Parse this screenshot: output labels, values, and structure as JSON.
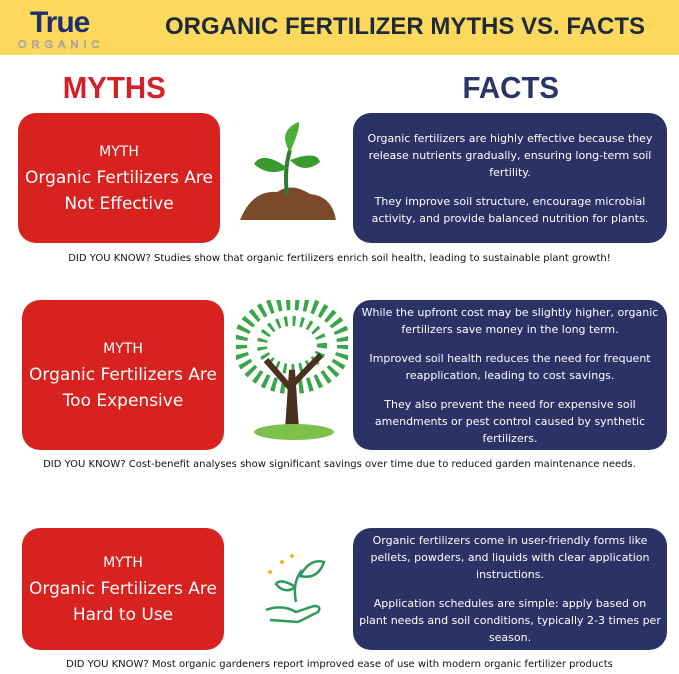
{
  "header": {
    "logo_text": "True",
    "logo_sub": "ORGANIC",
    "title": "ORGANIC FERTILIZER MYTHS VS. FACTS"
  },
  "columns": {
    "myths": "MYTHS",
    "facts": "FACTS"
  },
  "colors": {
    "header_bg": "#fcd95c",
    "myth_red": "#d8221f",
    "fact_navy": "#2b3266"
  },
  "rows": [
    {
      "myth_label": "MYTH",
      "myth_lines": [
        "Organic Fertilizers Are",
        "Not Effective"
      ],
      "icon": "seedling-in-soil-icon",
      "facts": [
        "Organic fertilizers are highly effective because they release nutrients gradually, ensuring long-term soil fertility.",
        "They improve soil structure, encourage microbial activity, and provide balanced nutrition for plants."
      ],
      "did_you_know": "DID YOU KNOW? Studies show that organic fertilizers enrich soil health, leading to sustainable plant growth!"
    },
    {
      "myth_label": "MYTH",
      "myth_lines": [
        "Organic Fertilizers Are",
        "Too Expensive"
      ],
      "icon": "money-tree-icon",
      "facts": [
        "While the upfront cost may be slightly higher, organic fertilizers save money in the long term.",
        "Improved soil health reduces the need for frequent reapplication, leading to cost savings.",
        "They also prevent the need for expensive soil amendments or pest control caused by synthetic fertilizers."
      ],
      "did_you_know": "DID YOU KNOW? Cost-benefit analyses show significant savings over time due to reduced garden maintenance needs."
    },
    {
      "myth_label": "MYTH",
      "myth_lines": [
        "Organic Fertilizers Are",
        "Hard to Use"
      ],
      "icon": "hand-with-plant-icon",
      "facts": [
        "Organic fertilizers come in user-friendly forms like pellets, powders, and liquids with clear application instructions.",
        "Application schedules are simple: apply based on plant needs and soil conditions, typically 2-3 times per season."
      ],
      "did_you_know": "DID YOU KNOW? Most organic gardeners report improved ease of use with modern organic fertilizer products"
    }
  ]
}
